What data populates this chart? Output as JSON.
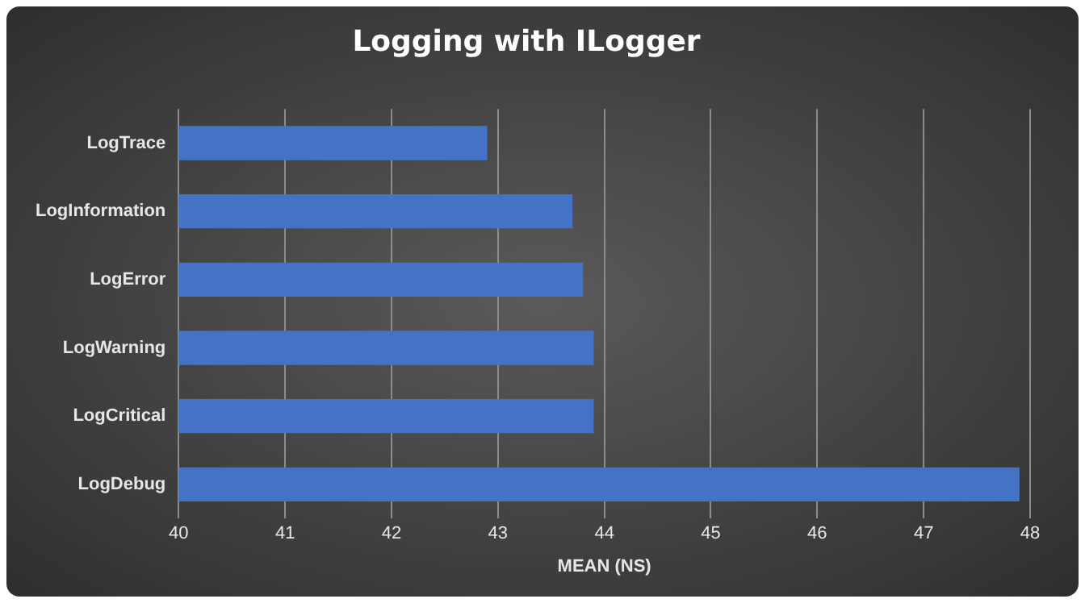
{
  "chart_data": {
    "type": "bar",
    "orientation": "horizontal",
    "title": "Logging with ILogger",
    "xlabel": "MEAN (NS)",
    "categories": [
      "LogTrace",
      "LogInformation",
      "LogError",
      "LogWarning",
      "LogCritical",
      "LogDebug"
    ],
    "series": [
      {
        "color": "#4472c4",
        "values": [
          42.9,
          43.7,
          43.8,
          43.9,
          43.9,
          47.9
        ]
      }
    ],
    "xlim": [
      40,
      48
    ],
    "xticks": [
      40,
      41,
      42,
      43,
      44,
      45,
      46,
      47,
      48
    ],
    "grid": "x",
    "legend": false
  }
}
